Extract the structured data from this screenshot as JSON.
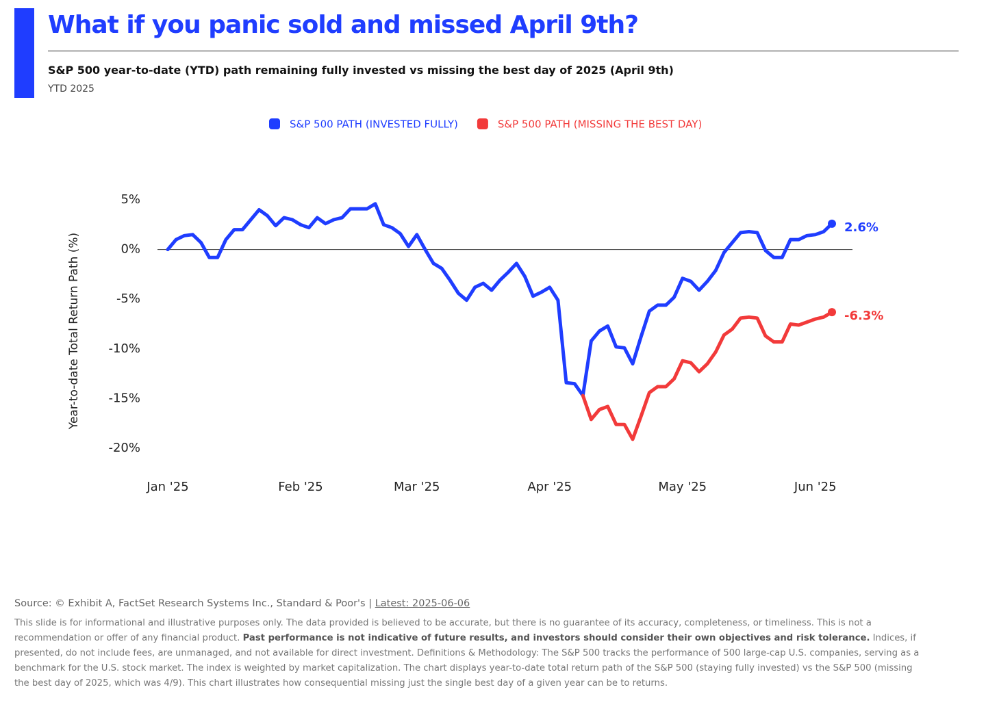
{
  "header": {
    "title": "What if you panic sold and missed April 9th?",
    "subtitle": "S&P 500 year-to-date (YTD) path remaining fully invested vs missing the best day of 2025 (April 9th)",
    "period": "YTD 2025"
  },
  "chart_data": {
    "type": "line",
    "y_label": "Year-to-date Total Return Path (%)",
    "categories": [
      "Jan '25",
      null,
      null,
      null,
      null,
      null,
      null,
      null,
      null,
      null,
      null,
      null,
      null,
      null,
      null,
      null,
      "Feb '25",
      null,
      null,
      null,
      null,
      null,
      null,
      null,
      null,
      null,
      null,
      null,
      null,
      null,
      "Mar '25",
      null,
      null,
      null,
      null,
      null,
      null,
      null,
      null,
      null,
      null,
      null,
      null,
      null,
      null,
      null,
      "Apr '25",
      null,
      null,
      null,
      null,
      null,
      null,
      null,
      null,
      null,
      null,
      null,
      null,
      null,
      null,
      null,
      "May '25",
      null,
      null,
      null,
      null,
      null,
      null,
      null,
      null,
      null,
      null,
      null,
      null,
      null,
      null,
      null,
      "Jun '25",
      null,
      null
    ],
    "series": [
      {
        "name": "S&P 500 PATH (INVESTED FULLY)",
        "color": "#1f3dff",
        "values": [
          0,
          1.0,
          1.4,
          1.5,
          0.7,
          -0.8,
          -0.8,
          1.0,
          2.0,
          2.0,
          3.0,
          4.0,
          3.4,
          2.4,
          3.2,
          3.0,
          2.5,
          2.2,
          3.2,
          2.6,
          3.0,
          3.2,
          4.1,
          4.1,
          4.1,
          4.6,
          2.5,
          2.2,
          1.6,
          0.3,
          1.5,
          0.0,
          -1.4,
          -1.9,
          -3.1,
          -4.4,
          -5.1,
          -3.8,
          -3.4,
          -4.1,
          -3.1,
          -2.3,
          -1.4,
          -2.7,
          -4.7,
          -4.3,
          -3.8,
          -5.1,
          -13.4,
          -13.5,
          -14.7,
          -9.2,
          -8.2,
          -7.7,
          -9.8,
          -9.9,
          -11.5,
          -8.8,
          -6.2,
          -5.6,
          -5.6,
          -4.8,
          -2.9,
          -3.2,
          -4.1,
          -3.2,
          -2.1,
          -0.3,
          0.7,
          1.7,
          1.8,
          1.7,
          -0.1,
          -0.8,
          -0.8,
          1.0,
          1.0,
          1.4,
          1.5,
          1.8,
          2.6
        ],
        "value_labels": [
          null,
          null,
          null,
          null,
          null,
          null,
          null,
          null,
          null,
          null,
          null,
          null,
          null,
          null,
          null,
          null,
          null,
          null,
          null,
          null,
          null,
          null,
          null,
          null,
          null,
          null,
          null,
          null,
          null,
          null,
          null,
          null,
          null,
          null,
          null,
          null,
          null,
          null,
          null,
          null,
          null,
          null,
          null,
          null,
          null,
          null,
          null,
          null,
          null,
          null,
          null,
          null,
          null,
          null,
          null,
          null,
          null,
          null,
          null,
          null,
          null,
          null,
          null,
          null,
          null,
          null,
          null,
          null,
          null,
          null,
          null,
          null,
          null,
          null,
          null,
          null,
          null,
          null,
          null,
          null,
          "2.6%"
        ]
      },
      {
        "name": "S&P 500 PATH (MISSING THE BEST DAY)",
        "color": "#f23a3a",
        "values": [
          null,
          null,
          null,
          null,
          null,
          null,
          null,
          null,
          null,
          null,
          null,
          null,
          null,
          null,
          null,
          null,
          null,
          null,
          null,
          null,
          null,
          null,
          null,
          null,
          null,
          null,
          null,
          null,
          null,
          null,
          null,
          null,
          null,
          null,
          null,
          null,
          null,
          null,
          null,
          null,
          null,
          null,
          null,
          null,
          null,
          null,
          null,
          null,
          null,
          null,
          -14.7,
          -17.1,
          -16.1,
          -15.8,
          -17.6,
          -17.6,
          -19.1,
          -16.8,
          -14.4,
          -13.8,
          -13.8,
          -13.0,
          -11.2,
          -11.4,
          -12.3,
          -11.5,
          -10.3,
          -8.6,
          -8.0,
          -6.9,
          -6.8,
          -6.9,
          -8.7,
          -9.3,
          -9.3,
          -7.5,
          -7.6,
          -7.3,
          -7.0,
          -6.8,
          -6.3
        ],
        "value_labels": [
          null,
          null,
          null,
          null,
          null,
          null,
          null,
          null,
          null,
          null,
          null,
          null,
          null,
          null,
          null,
          null,
          null,
          null,
          null,
          null,
          null,
          null,
          null,
          null,
          null,
          null,
          null,
          null,
          null,
          null,
          null,
          null,
          null,
          null,
          null,
          null,
          null,
          null,
          null,
          null,
          null,
          null,
          null,
          null,
          null,
          null,
          null,
          null,
          null,
          null,
          null,
          null,
          null,
          null,
          null,
          null,
          null,
          null,
          null,
          null,
          null,
          null,
          null,
          null,
          null,
          null,
          null,
          null,
          null,
          null,
          null,
          null,
          null,
          null,
          null,
          null,
          null,
          null,
          null,
          null,
          "-6.3%"
        ]
      }
    ],
    "ylim": [
      -20,
      5
    ],
    "yticks": [
      {
        "value": 5,
        "label": "5%"
      },
      {
        "value": 0,
        "label": "0%"
      },
      {
        "value": -5,
        "label": "-5%"
      },
      {
        "value": -10,
        "label": "-10%"
      },
      {
        "value": -15,
        "label": "-15%"
      },
      {
        "value": -20,
        "label": "-20%"
      }
    ],
    "legend": "top"
  },
  "footer": {
    "source": "Source: © Exhibit A, FactSet Research Systems Inc., Standard & Poor's | ",
    "latest": "Latest: 2025-06-06",
    "disclaimer_1": "This slide is for informational and illustrative purposes only. The data provided is believed to be accurate, but there is no guarantee of its accuracy, completeness, or timeliness. This is not a recommendation or offer of any financial product. ",
    "disclaimer_bold": "Past performance is not indicative of future results, and investors should consider their own objectives and risk tolerance.",
    "disclaimer_2": " Indices, if presented, do not include fees, are unmanaged, and not available for direct investment. Definitions & Methodology: The S&P 500 tracks the performance of 500 large-cap U.S. companies, serving as a benchmark for the U.S. stock market. The index is weighted by market capitalization. The chart displays year-to-date total return path of the S&P 500 (staying fully invested) vs the S&P 500 (missing the best day of 2025, which was 4/9). This chart illustrates how consequential missing just the single best day of a given year can be to returns."
  }
}
